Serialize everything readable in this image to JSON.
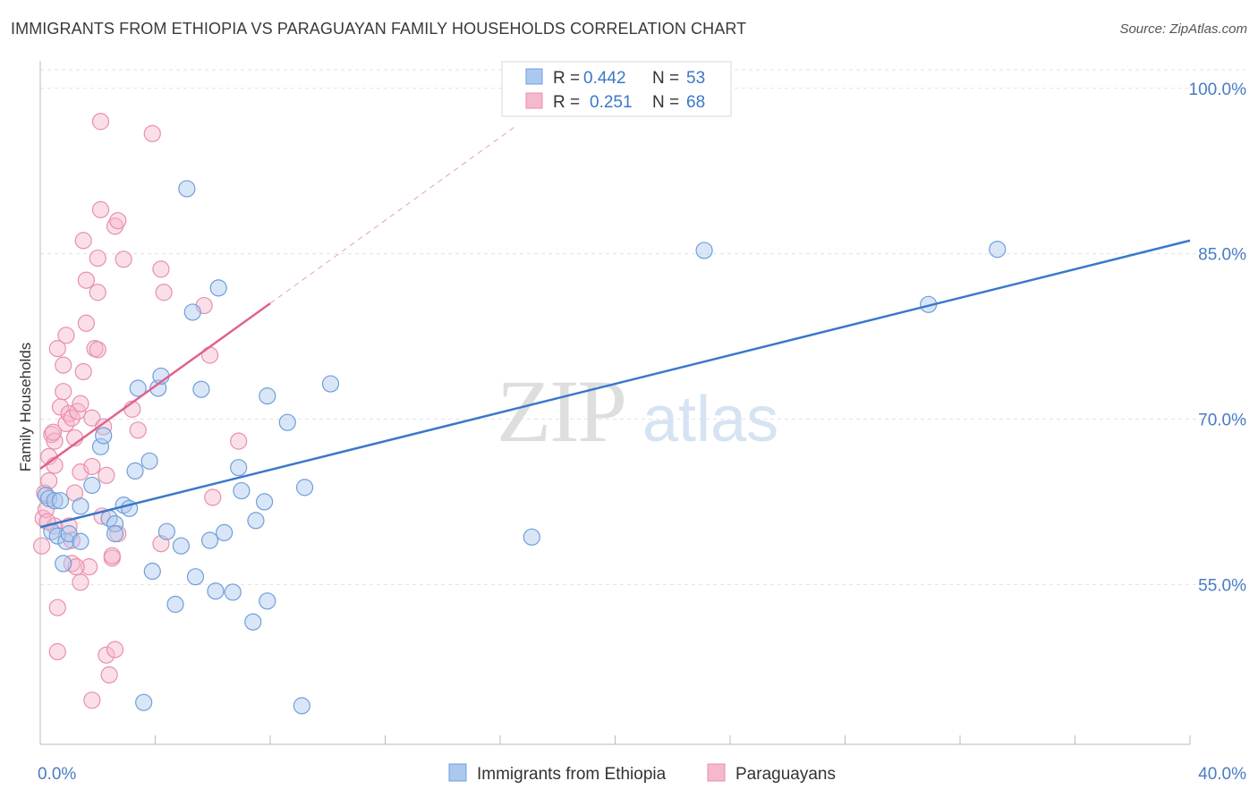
{
  "title": "IMMIGRANTS FROM ETHIOPIA VS PARAGUAYAN FAMILY HOUSEHOLDS CORRELATION CHART",
  "source": "Source: ZipAtlas.com",
  "watermark": {
    "part1": "ZIP",
    "part2": "atlas"
  },
  "colors": {
    "blue_fill": "#aac8f0",
    "blue_stroke": "#6f9fd8",
    "blue_line": "#3a78c9",
    "pink_fill": "#f6b8cc",
    "pink_stroke": "#e88fab",
    "pink_line": "#e0628f",
    "axis_text": "#4a7cc4",
    "grid": "#e3e3e3"
  },
  "chart_data": {
    "type": "scatter",
    "title": "IMMIGRANTS FROM ETHIOPIA VS PARAGUAYAN FAMILY HOUSEHOLDS CORRELATION CHART",
    "xlabel": "",
    "ylabel": "Family Households",
    "xlim": [
      0,
      40
    ],
    "ylim": [
      40.5,
      102.5
    ],
    "x_tick_labels": [
      {
        "value": 0,
        "label": "0.0%"
      },
      {
        "value": 40,
        "label": "40.0%"
      }
    ],
    "y_tick_labels": [
      {
        "value": 55,
        "label": "55.0%"
      },
      {
        "value": 70,
        "label": "70.0%"
      },
      {
        "value": 85,
        "label": "85.0%"
      },
      {
        "value": 100,
        "label": "100.0%"
      }
    ],
    "legend_top": [
      {
        "r_label": "R =",
        "r_value": "0.442",
        "n_label": "N =",
        "n_value": "53",
        "series": "blue"
      },
      {
        "r_label": "R =",
        "r_value": "0.251",
        "n_label": "N =",
        "n_value": "68",
        "series": "pink"
      }
    ],
    "series": [
      {
        "name": "Immigrants from Ethiopia",
        "color": "blue",
        "trend": {
          "x0": 0,
          "y0": 60.2,
          "x1": 40,
          "y1": 86.2
        },
        "points": [
          [
            0.2,
            63.1
          ],
          [
            0.3,
            62.8
          ],
          [
            0.4,
            59.8
          ],
          [
            0.5,
            62.6
          ],
          [
            0.6,
            59.4
          ],
          [
            0.8,
            56.9
          ],
          [
            0.9,
            58.9
          ],
          [
            1.0,
            59.6
          ],
          [
            1.4,
            58.9
          ],
          [
            1.4,
            62.1
          ],
          [
            1.8,
            64.0
          ],
          [
            2.1,
            67.5
          ],
          [
            2.2,
            68.5
          ],
          [
            2.4,
            61.0
          ],
          [
            2.6,
            60.5
          ],
          [
            2.6,
            59.6
          ],
          [
            2.9,
            62.2
          ],
          [
            3.1,
            61.9
          ],
          [
            3.3,
            65.3
          ],
          [
            3.4,
            72.8
          ],
          [
            3.6,
            44.3
          ],
          [
            3.8,
            66.2
          ],
          [
            3.9,
            56.2
          ],
          [
            4.1,
            72.8
          ],
          [
            4.2,
            73.9
          ],
          [
            4.4,
            59.8
          ],
          [
            4.7,
            53.2
          ],
          [
            4.9,
            58.5
          ],
          [
            5.1,
            90.9
          ],
          [
            5.3,
            79.7
          ],
          [
            5.4,
            55.7
          ],
          [
            5.6,
            72.7
          ],
          [
            5.9,
            59.0
          ],
          [
            6.1,
            54.4
          ],
          [
            6.2,
            81.9
          ],
          [
            6.4,
            59.7
          ],
          [
            6.7,
            54.3
          ],
          [
            6.9,
            65.6
          ],
          [
            7.0,
            63.5
          ],
          [
            7.4,
            51.6
          ],
          [
            7.5,
            60.8
          ],
          [
            7.8,
            62.5
          ],
          [
            7.9,
            53.5
          ],
          [
            7.9,
            72.1
          ],
          [
            8.6,
            69.7
          ],
          [
            9.1,
            44.0
          ],
          [
            9.2,
            63.8
          ],
          [
            10.1,
            73.2
          ],
          [
            17.1,
            59.3
          ],
          [
            23.1,
            85.3
          ],
          [
            30.9,
            80.4
          ],
          [
            33.3,
            85.4
          ],
          [
            0.7,
            62.6
          ]
        ]
      },
      {
        "name": "Paraguayans",
        "color": "pink",
        "trend": {
          "x0": 0,
          "y0": 65.5,
          "x1": 8.0,
          "y1": 80.5
        },
        "trend_dashed": {
          "x0": 8.0,
          "y0": 80.5,
          "x1": 16.5,
          "y1": 96.5
        },
        "points": [
          [
            0.05,
            58.5
          ],
          [
            0.1,
            61.0
          ],
          [
            0.15,
            63.3
          ],
          [
            0.2,
            61.8
          ],
          [
            0.3,
            64.4
          ],
          [
            0.3,
            66.6
          ],
          [
            0.4,
            68.6
          ],
          [
            0.5,
            68.0
          ],
          [
            0.5,
            65.8
          ],
          [
            0.5,
            60.3
          ],
          [
            0.6,
            52.9
          ],
          [
            0.6,
            76.4
          ],
          [
            0.6,
            48.9
          ],
          [
            0.7,
            71.1
          ],
          [
            0.8,
            74.9
          ],
          [
            0.8,
            72.5
          ],
          [
            0.9,
            69.6
          ],
          [
            0.9,
            77.6
          ],
          [
            1.0,
            70.5
          ],
          [
            1.0,
            60.3
          ],
          [
            1.1,
            56.9
          ],
          [
            1.1,
            59.0
          ],
          [
            1.1,
            70.1
          ],
          [
            1.2,
            68.3
          ],
          [
            1.2,
            63.3
          ],
          [
            1.3,
            70.7
          ],
          [
            1.4,
            65.2
          ],
          [
            1.4,
            71.4
          ],
          [
            1.4,
            55.2
          ],
          [
            1.5,
            86.2
          ],
          [
            1.5,
            74.3
          ],
          [
            1.6,
            82.6
          ],
          [
            1.6,
            78.7
          ],
          [
            1.7,
            56.6
          ],
          [
            1.8,
            44.5
          ],
          [
            1.8,
            70.1
          ],
          [
            1.8,
            65.7
          ],
          [
            1.9,
            76.4
          ],
          [
            2.0,
            81.5
          ],
          [
            2.0,
            84.6
          ],
          [
            2.0,
            76.3
          ],
          [
            2.1,
            97.0
          ],
          [
            2.1,
            89.0
          ],
          [
            2.2,
            69.3
          ],
          [
            2.3,
            48.6
          ],
          [
            2.3,
            64.9
          ],
          [
            2.4,
            46.8
          ],
          [
            2.5,
            57.4
          ],
          [
            2.5,
            57.6
          ],
          [
            2.6,
            49.1
          ],
          [
            2.6,
            87.5
          ],
          [
            2.7,
            88.0
          ],
          [
            2.7,
            59.6
          ],
          [
            2.9,
            84.5
          ],
          [
            3.2,
            70.9
          ],
          [
            3.4,
            69.0
          ],
          [
            3.9,
            95.9
          ],
          [
            4.2,
            58.7
          ],
          [
            4.2,
            83.6
          ],
          [
            4.3,
            81.5
          ],
          [
            5.7,
            80.3
          ],
          [
            5.9,
            75.8
          ],
          [
            6.0,
            62.9
          ],
          [
            6.9,
            68.0
          ],
          [
            0.25,
            60.7
          ],
          [
            0.45,
            68.8
          ],
          [
            1.25,
            56.6
          ],
          [
            2.15,
            61.2
          ]
        ]
      }
    ],
    "legend_bottom": [
      "Immigrants from Ethiopia",
      "Paraguayans"
    ],
    "grid": true
  }
}
